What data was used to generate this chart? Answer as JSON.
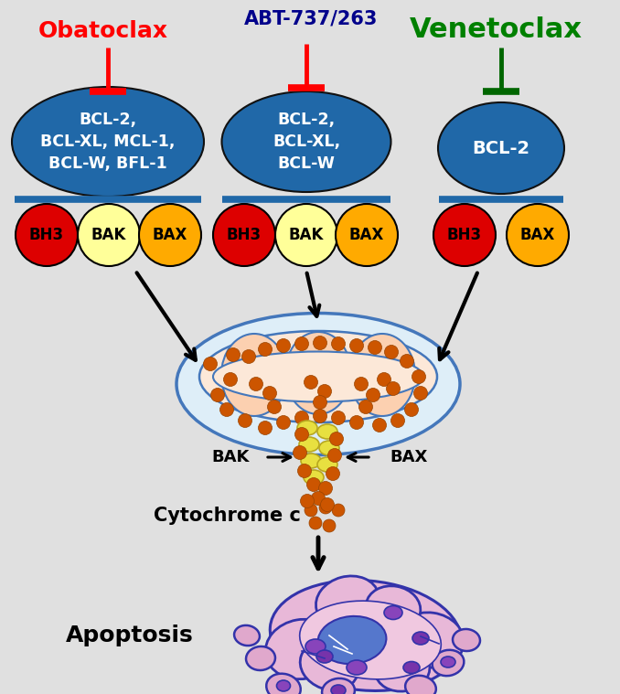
{
  "bg_color": "#e0e0e0",
  "obatoclax_label": "Obatoclax",
  "obatoclax_color": "#ff0000",
  "abt_label": "ABT-737/263",
  "abt_color": "#00008B",
  "venetoclax_label": "Venetoclax",
  "venetoclax_color": "#008000",
  "ellipse_color": "#2068a8",
  "ellipse_text_color": "#ffffff",
  "bh3_color": "#dd0000",
  "bak_color": "#ffff99",
  "bax_color": "#ffaa00",
  "membrane_color": "#2068a8",
  "cyto_dot_color": "#cc5500",
  "cyto_dot_edge": "#994400",
  "inhibitor_red": "#ff0000",
  "inhibitor_green": "#006600",
  "mito_outer_face": "#deeef8",
  "mito_outer_edge": "#4477bb",
  "mito_inner_face": "#fce8d8",
  "cristae_face": "#fcd0b0",
  "cristae_edge": "#4477bb",
  "pore_face": "#e8e040",
  "pore_edge": "#b8a820",
  "cell_pink": "#e8b8d8",
  "cell_edge": "#3333aa",
  "cell_inner_pink": "#d890c0",
  "nucleus_blue": "#4466cc",
  "nucleus_purple": "#8844aa",
  "apoptosis_body_pink": "#e0a8cc"
}
